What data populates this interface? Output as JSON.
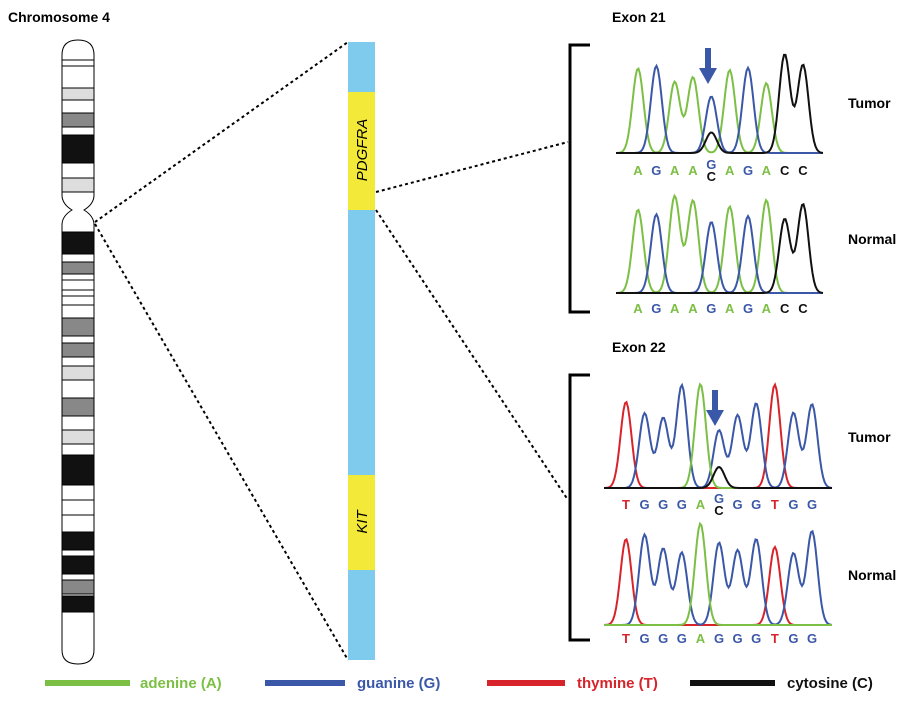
{
  "chromosome": {
    "label": "Chromosome 4"
  },
  "genes": [
    {
      "label": "PDGFRA"
    },
    {
      "label": "KIT"
    }
  ],
  "panels": [
    {
      "title": "Exon 21",
      "rows": [
        {
          "label": "Tumor",
          "bases": [
            [
              "A"
            ],
            [
              "G"
            ],
            [
              "A"
            ],
            [
              "A"
            ],
            [
              "G",
              "C"
            ],
            [
              "A"
            ],
            [
              "G"
            ],
            [
              "A"
            ],
            [
              "C"
            ],
            [
              "C"
            ]
          ]
        },
        {
          "label": "Normal",
          "bases": [
            [
              "A"
            ],
            [
              "G"
            ],
            [
              "A"
            ],
            [
              "A"
            ],
            [
              "G"
            ],
            [
              "A"
            ],
            [
              "G"
            ],
            [
              "A"
            ],
            [
              "C"
            ],
            [
              "C"
            ]
          ]
        }
      ]
    },
    {
      "title": "Exon 22",
      "rows": [
        {
          "label": "Tumor",
          "bases": [
            [
              "T"
            ],
            [
              "G"
            ],
            [
              "G"
            ],
            [
              "G"
            ],
            [
              "A"
            ],
            [
              "G",
              "C"
            ],
            [
              "G"
            ],
            [
              "G"
            ],
            [
              "T"
            ],
            [
              "G"
            ],
            [
              "G"
            ]
          ]
        },
        {
          "label": "Normal",
          "bases": [
            [
              "T"
            ],
            [
              "G"
            ],
            [
              "G"
            ],
            [
              "G"
            ],
            [
              "A"
            ],
            [
              "G"
            ],
            [
              "G"
            ],
            [
              "G"
            ],
            [
              "T"
            ],
            [
              "G"
            ],
            [
              "G"
            ]
          ]
        }
      ]
    }
  ],
  "legend": [
    {
      "label": "adenine (A)",
      "color": "#7cbf45"
    },
    {
      "label": "guanine (G)",
      "color": "#3b58a8"
    },
    {
      "label": "thymine (T)",
      "color": "#d7242b"
    },
    {
      "label": "cytosine (C)",
      "color": "#111111"
    }
  ]
}
